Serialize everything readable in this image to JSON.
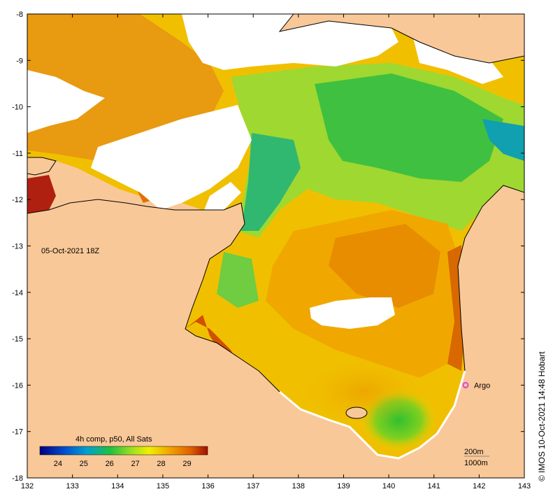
{
  "map": {
    "timestamp": "05-Oct-2021 18Z",
    "x_ticks": [
      "132",
      "133",
      "134",
      "135",
      "136",
      "137",
      "138",
      "139",
      "140",
      "141",
      "142",
      "143"
    ],
    "y_ticks": [
      "-8",
      "-9",
      "-10",
      "-11",
      "-12",
      "-13",
      "-14",
      "-15",
      "-16",
      "-17",
      "-18"
    ],
    "lon_range": [
      132,
      143
    ],
    "lat_range": [
      -18,
      -8
    ],
    "marker": {
      "label": "Argo",
      "lon": 141.7,
      "lat": -16.0,
      "color": "#e040e0"
    },
    "legend": {
      "title": "4h comp, p50, All Sats",
      "labels": [
        "24",
        "25",
        "26",
        "27",
        "28",
        "29"
      ],
      "range": [
        23.3,
        29.8
      ]
    },
    "scale_bar": {
      "contour_1": "200m",
      "contour_2": "1000m"
    },
    "credit": "© IMOS 10-Oct-2021 14:48 Hobart",
    "colors": {
      "land": "#f9c898",
      "cloud": "#ffffff",
      "coast": "#000000"
    }
  }
}
